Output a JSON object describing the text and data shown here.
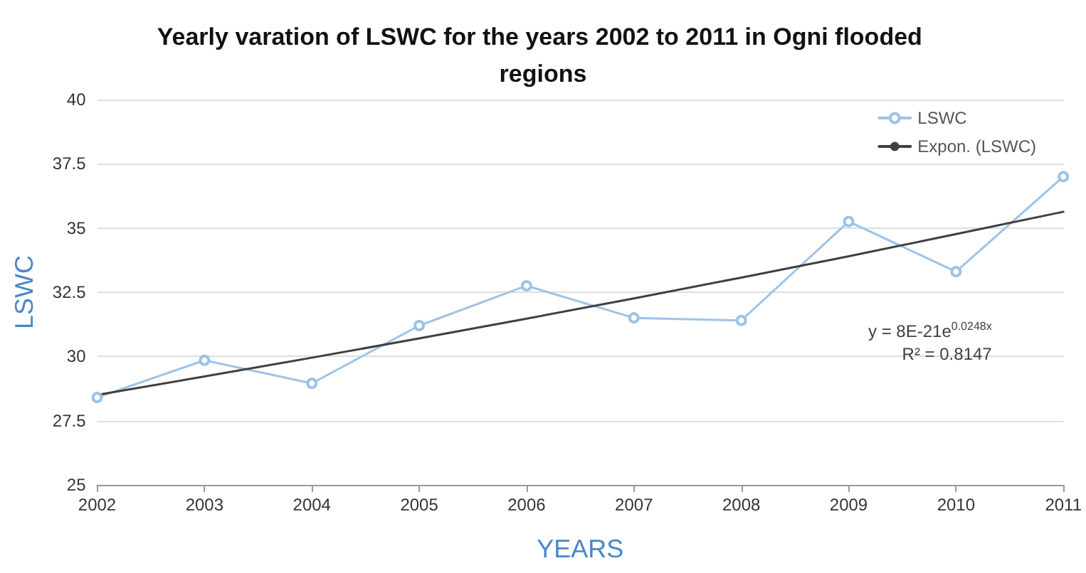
{
  "chart_data": {
    "type": "line",
    "title": "Yearly varation of LSWC for the years 2002 to 2011 in Ogni flooded regions",
    "xlabel": "YEARS",
    "ylabel": "LSWC",
    "x": [
      2002,
      2003,
      2004,
      2005,
      2006,
      2007,
      2008,
      2009,
      2010,
      2011
    ],
    "series": [
      {
        "name": "LSWC",
        "color": "#9dc3e6",
        "marker": "circle",
        "values": [
          28.4,
          29.85,
          28.95,
          31.2,
          32.75,
          31.5,
          31.4,
          35.25,
          33.3,
          37.0
        ]
      },
      {
        "name": "Expon. (LSWC)",
        "color": "#404040",
        "marker": "none",
        "values": [
          28.5,
          29.22,
          29.95,
          30.7,
          31.47,
          32.26,
          33.07,
          33.9,
          34.76,
          35.63
        ]
      }
    ],
    "xlim": [
      2002,
      2011
    ],
    "xticks": [
      2002,
      2003,
      2004,
      2005,
      2006,
      2007,
      2008,
      2009,
      2010,
      2011
    ],
    "ylim": [
      25,
      40
    ],
    "yticks": [
      25,
      27.5,
      30,
      32.5,
      35,
      37.5,
      40
    ],
    "grid": "y",
    "legend": "top right",
    "line_style": "solid",
    "annotations": [
      "y = 8E-21e$^{0.0248x}$",
      "R² = 0.8147"
    ]
  }
}
